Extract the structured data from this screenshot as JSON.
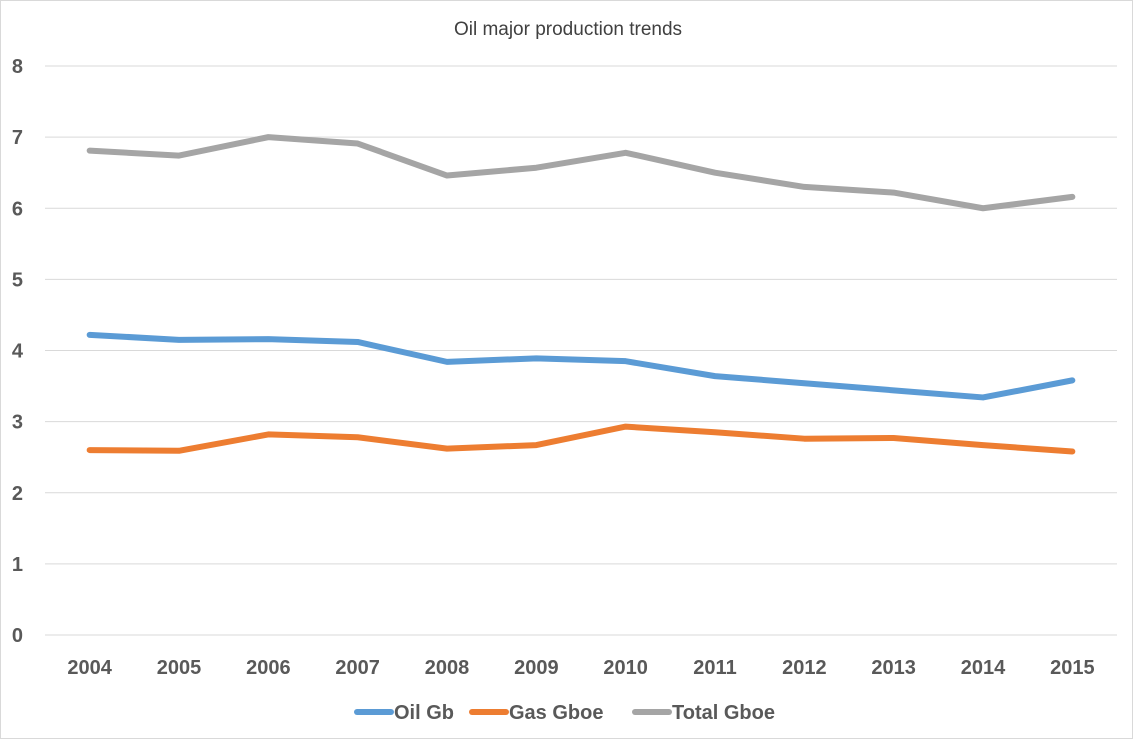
{
  "chart_data": {
    "type": "line",
    "title": "Oil major production trends",
    "xlabel": "",
    "ylabel": "",
    "categories": [
      "2004",
      "2005",
      "2006",
      "2007",
      "2008",
      "2009",
      "2010",
      "2011",
      "2012",
      "2013",
      "2014",
      "2015"
    ],
    "ylim": [
      0,
      8
    ],
    "yticks": [
      "0",
      "1",
      "2",
      "3",
      "4",
      "5",
      "6",
      "7",
      "8"
    ],
    "grid": true,
    "legend_position": "bottom",
    "series": [
      {
        "name": "Oil Gb",
        "color": "#5B9BD5",
        "values": [
          4.22,
          4.15,
          4.16,
          4.12,
          3.84,
          3.89,
          3.85,
          3.64,
          3.54,
          3.44,
          3.34,
          3.58
        ]
      },
      {
        "name": "Gas Gboe",
        "color": "#ED7D31",
        "values": [
          2.6,
          2.59,
          2.82,
          2.78,
          2.62,
          2.67,
          2.93,
          2.85,
          2.76,
          2.77,
          2.67,
          2.58
        ]
      },
      {
        "name": "Total Gboe",
        "color": "#A5A5A5",
        "values": [
          6.81,
          6.74,
          7.0,
          6.91,
          6.46,
          6.57,
          6.78,
          6.5,
          6.3,
          6.22,
          6.0,
          6.16
        ]
      }
    ]
  }
}
